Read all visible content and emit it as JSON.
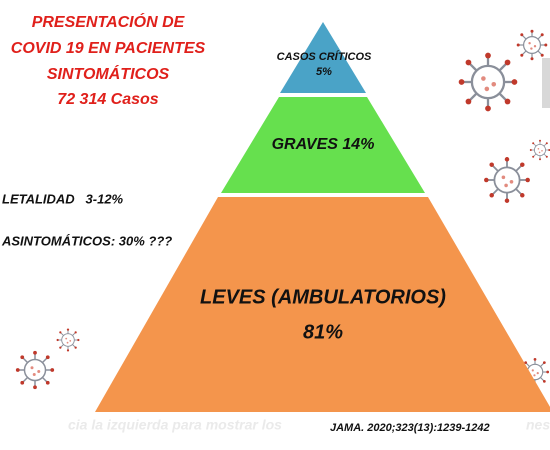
{
  "header": {
    "lines": [
      "PRESENTACIÓN DE",
      "COVID 19 EN PACIENTES",
      "SINTOMÁTICOS",
      "72 314 Casos"
    ]
  },
  "notes": [
    "LETALIDAD   3-12%",
    "ASINTOMÁTICOS:  30% ???"
  ],
  "pyramid": {
    "levels": [
      {
        "lines": [
          "CASOS CRÍTICOS",
          "5%"
        ]
      },
      {
        "lines": [
          "GRAVES 14%"
        ]
      },
      {
        "lines": [
          "LEVES (AMBULATORIOS)",
          "81%"
        ]
      }
    ]
  },
  "citation": "JAMA. 2020;323(13):1239-1242",
  "overlay": [
    "cia la izquierda para mostrar los",
    "nes"
  ]
}
